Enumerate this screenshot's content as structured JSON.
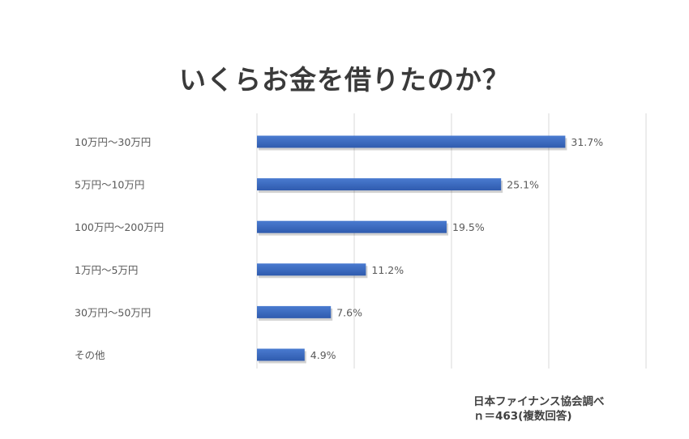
{
  "chart_data": {
    "type": "bar",
    "orientation": "horizontal",
    "title": "いくらお金を借りたのか？",
    "categories": [
      "10万円～30万円",
      "5万円～10万円",
      "100万円～200万円",
      "1万円～5万円",
      "30万円～50万円",
      "その他"
    ],
    "values": [
      31.7,
      25.1,
      19.5,
      11.2,
      7.6,
      4.9
    ],
    "data_labels": [
      "31.7%",
      "25.1%",
      "19.5%",
      "11.2%",
      "7.6%",
      "4.9%"
    ],
    "xlim": [
      0,
      40
    ],
    "grid": true,
    "legend": "none",
    "bar_color": "#4472c4"
  },
  "source": {
    "line1": "日本ファイナンス協会調べ",
    "line2": "ｎ＝463(複数回答)"
  }
}
